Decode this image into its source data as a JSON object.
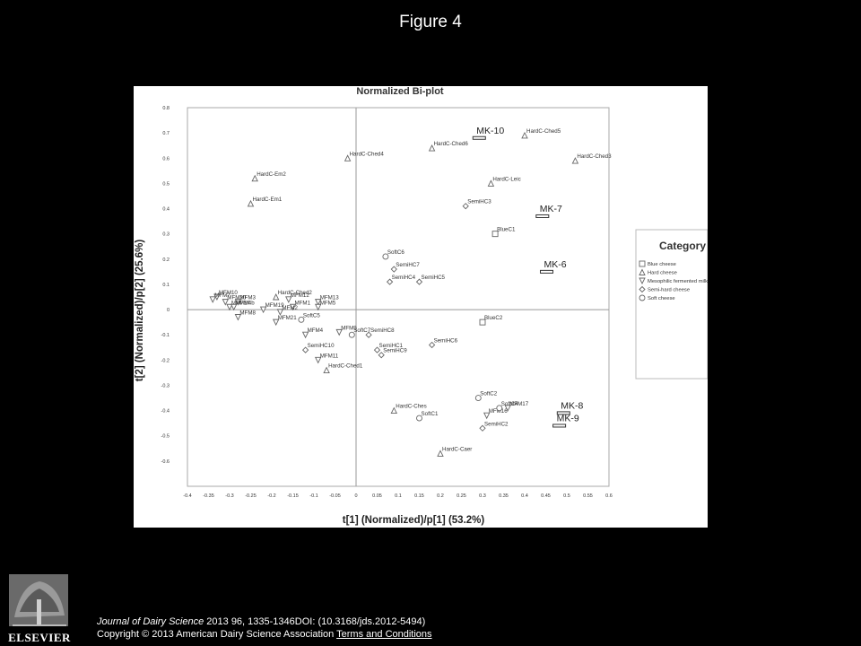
{
  "slide": {
    "title": "Figure 4"
  },
  "chart_data": {
    "type": "scatter",
    "title": "Normalized Bi-plot",
    "xlabel": "t[1] (Normalized)/p[1] (53.2%)",
    "ylabel": "t[2] (Normalized)/p[2] (25.6%)",
    "xlim": [
      -0.4,
      0.6
    ],
    "ylim": [
      -0.7,
      0.8
    ],
    "xticks": [
      -0.4,
      -0.35,
      -0.3,
      -0.25,
      -0.2,
      -0.15,
      -0.1,
      -0.05,
      0,
      0.05,
      0.1,
      0.15,
      0.2,
      0.25,
      0.3,
      0.35,
      0.4,
      0.45,
      0.5,
      0.55,
      0.6
    ],
    "xtick_labels": [
      "-0.4",
      "-0.35",
      "-0.3",
      "-0.25",
      "-0.2",
      "-0.15",
      "-0.1",
      "-0.05",
      "0",
      "0.05",
      "0.1",
      "0.15",
      "0.2",
      "0.25",
      "0.3",
      "0.35",
      "0.4",
      "0.45",
      "0.5",
      "0.55",
      "0.6"
    ],
    "yticks": [
      0.8,
      0.7,
      0.6,
      0.5,
      0.4,
      0.3,
      0.2,
      0.1,
      0,
      -0.1,
      -0.2,
      -0.3,
      -0.4,
      -0.5,
      -0.6
    ],
    "ytick_labels": [
      "0.8",
      "0.7",
      "0.6",
      "0.5",
      "0.4",
      "0.3",
      "0.2",
      "0.1",
      "0",
      "-0.1",
      "-0.2",
      "-0.3",
      "-0.4",
      "-0.5",
      "-0.6"
    ],
    "grid": false,
    "legend": {
      "title": "Category",
      "placement": "right",
      "entries": [
        {
          "label": "Blue cheese",
          "marker": "square"
        },
        {
          "label": "Hard cheese",
          "marker": "triangle-up"
        },
        {
          "label": "Mesophilic fermented milk",
          "marker": "triangle-down"
        },
        {
          "label": "Semi-hard cheese",
          "marker": "diamond"
        },
        {
          "label": "Soft cheese",
          "marker": "circle"
        }
      ]
    },
    "series": [
      {
        "name": "Blue cheese",
        "marker": "square",
        "points": [
          {
            "label": "BlueC1",
            "x": 0.33,
            "y": 0.3
          },
          {
            "label": "BlueC2",
            "x": 0.3,
            "y": -0.05
          }
        ]
      },
      {
        "name": "Hard cheese",
        "marker": "triangle-up",
        "points": [
          {
            "label": "HardC-Ched5",
            "x": 0.4,
            "y": 0.69
          },
          {
            "label": "HardC-Ched6",
            "x": 0.18,
            "y": 0.64
          },
          {
            "label": "HardC-Ched3",
            "x": 0.52,
            "y": 0.59
          },
          {
            "label": "HardC-Ched4",
            "x": -0.02,
            "y": 0.6
          },
          {
            "label": "HardC-Em2",
            "x": -0.24,
            "y": 0.52
          },
          {
            "label": "HardC-Leic",
            "x": 0.32,
            "y": 0.5
          },
          {
            "label": "HardC-Em1",
            "x": -0.25,
            "y": 0.42
          },
          {
            "label": "HardC-Ched2",
            "x": -0.19,
            "y": 0.05
          },
          {
            "label": "HardC-Ched1",
            "x": -0.07,
            "y": -0.24
          },
          {
            "label": "HardC-Ches",
            "x": 0.09,
            "y": -0.4
          },
          {
            "label": "HardC-Caer",
            "x": 0.2,
            "y": -0.57
          }
        ]
      },
      {
        "name": "Mesophilic fermented milk",
        "marker": "triangle-down",
        "points": [
          {
            "label": "MFM10",
            "x": -0.33,
            "y": 0.05
          },
          {
            "label": "MFM7",
            "x": -0.34,
            "y": 0.04
          },
          {
            "label": "MFM20",
            "x": -0.31,
            "y": 0.03
          },
          {
            "label": "MFM3",
            "x": -0.28,
            "y": 0.03
          },
          {
            "label": "MFM14",
            "x": -0.3,
            "y": 0.01
          },
          {
            "label": "MFM4b",
            "x": -0.29,
            "y": 0.01
          },
          {
            "label": "MFM8",
            "x": -0.28,
            "y": -0.03
          },
          {
            "label": "MFM12",
            "x": -0.16,
            "y": 0.04
          },
          {
            "label": "MFM13",
            "x": -0.09,
            "y": 0.03
          },
          {
            "label": "MFM1",
            "x": -0.15,
            "y": 0.01
          },
          {
            "label": "MFM19",
            "x": -0.22,
            "y": 0.0
          },
          {
            "label": "MFM5",
            "x": -0.09,
            "y": 0.01
          },
          {
            "label": "MFM2",
            "x": -0.18,
            "y": -0.01
          },
          {
            "label": "MFM21",
            "x": -0.19,
            "y": -0.05
          },
          {
            "label": "MFM4",
            "x": -0.12,
            "y": -0.1
          },
          {
            "label": "MFM9",
            "x": -0.04,
            "y": -0.09
          },
          {
            "label": "MFM11",
            "x": -0.09,
            "y": -0.2
          },
          {
            "label": "MFM17",
            "x": 0.36,
            "y": -0.39
          },
          {
            "label": "MFM16",
            "x": 0.31,
            "y": -0.42
          }
        ]
      },
      {
        "name": "Semi-hard cheese",
        "marker": "diamond",
        "points": [
          {
            "label": "SemiHC3",
            "x": 0.26,
            "y": 0.41
          },
          {
            "label": "SemiHC7",
            "x": 0.09,
            "y": 0.16
          },
          {
            "label": "SemiHC4",
            "x": 0.08,
            "y": 0.11
          },
          {
            "label": "SemiHC5",
            "x": 0.15,
            "y": 0.11
          },
          {
            "label": "SemiHC8",
            "x": 0.03,
            "y": -0.1
          },
          {
            "label": "SemiHC6",
            "x": 0.18,
            "y": -0.14
          },
          {
            "label": "SemiHC1",
            "x": 0.05,
            "y": -0.16
          },
          {
            "label": "SemiHC9",
            "x": 0.06,
            "y": -0.18
          },
          {
            "label": "SemiHC10",
            "x": -0.12,
            "y": -0.16
          },
          {
            "label": "SemiHC2",
            "x": 0.3,
            "y": -0.47
          }
        ]
      },
      {
        "name": "Soft cheese",
        "marker": "circle",
        "points": [
          {
            "label": "SoftC6",
            "x": 0.07,
            "y": 0.21
          },
          {
            "label": "SoftC5",
            "x": -0.13,
            "y": -0.04
          },
          {
            "label": "SoftC7",
            "x": -0.01,
            "y": -0.1
          },
          {
            "label": "SoftC2",
            "x": 0.29,
            "y": -0.35
          },
          {
            "label": "SoftC4",
            "x": 0.34,
            "y": -0.39
          },
          {
            "label": "SoftC1",
            "x": 0.15,
            "y": -0.43
          }
        ]
      }
    ],
    "markers": [
      {
        "label": "MK-10",
        "x": 0.29,
        "y": 0.68
      },
      {
        "label": "MK-7",
        "x": 0.44,
        "y": 0.37
      },
      {
        "label": "MK-6",
        "x": 0.45,
        "y": 0.15
      },
      {
        "label": "MK-8",
        "x": 0.49,
        "y": -0.41
      },
      {
        "label": "MK-9",
        "x": 0.48,
        "y": -0.46
      }
    ]
  },
  "footer": {
    "publisher_logo": "elsevier-tree-logo",
    "logo_text": "ELSEVIER",
    "journal": "Journal of Dairy Science",
    "citation_rest": " 2013 96, 1335-1346DOI: (10.3168/jds.2012-5494)",
    "copyright": "Copyright © 2013 American Dairy Science Association",
    "link_text": "Terms and Conditions"
  }
}
